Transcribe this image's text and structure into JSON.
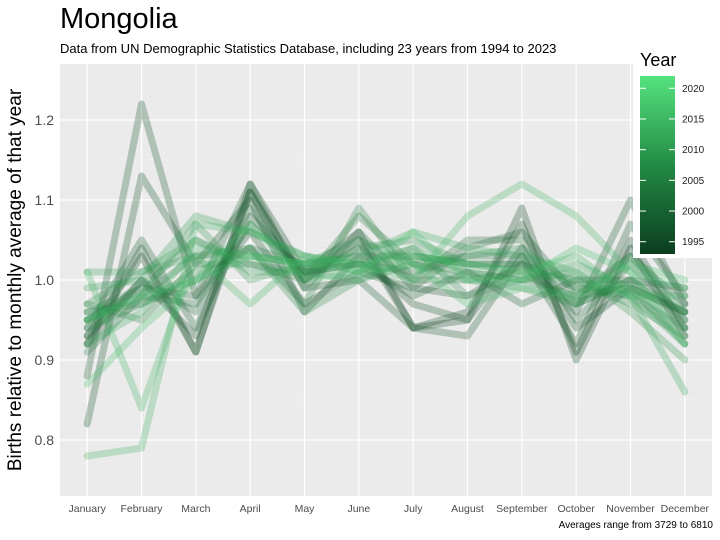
{
  "header": {
    "title": "Mongolia",
    "subtitle": "Data from UN Demographic Statistics Database, including 23 years from 1994 to 2023"
  },
  "footer": {
    "caption": "Averages range from 3729 to 6810"
  },
  "colors": {
    "panel_bg": "#ebebeb",
    "grid": "#ffffff",
    "low": "#0b3d1e",
    "high": "#55e27e"
  },
  "chart_data": {
    "type": "line",
    "title": "Mongolia",
    "subtitle": "Data from UN Demographic Statistics Database, including 23 years from 1994 to 2023",
    "xlabel": "",
    "ylabel": "Births relative to monthly average of that year",
    "categories": [
      "January",
      "February",
      "March",
      "April",
      "May",
      "June",
      "July",
      "August",
      "September",
      "October",
      "November",
      "December"
    ],
    "ylim": [
      0.73,
      1.27
    ],
    "yticks": [
      0.8,
      0.9,
      1.0,
      1.1,
      1.2
    ],
    "grid": true,
    "legend": {
      "title": "Year",
      "position": "right",
      "range": [
        1993,
        2022
      ],
      "ticks": [
        1995,
        2000,
        2005,
        2010,
        2015,
        2020
      ]
    },
    "caption": "Averages range from 3729 to 6810",
    "series": [
      {
        "year": 1994,
        "values": [
          0.93,
          1.03,
          0.91,
          1.12,
          1.01,
          1.06,
          0.94,
          0.95,
          1.09,
          0.9,
          1.04,
          0.93
        ]
      },
      {
        "year": 1995,
        "values": [
          0.92,
          1.0,
          0.93,
          1.11,
          1.0,
          1.05,
          0.94,
          0.96,
          1.07,
          0.91,
          1.05,
          0.94
        ]
      },
      {
        "year": 1996,
        "values": [
          0.82,
          1.13,
          1.02,
          1.1,
          0.96,
          1.03,
          0.97,
          0.95,
          1.04,
          0.94,
          0.99,
          0.96
        ]
      },
      {
        "year": 1997,
        "values": [
          0.88,
          1.22,
          0.98,
          1.06,
          0.97,
          1.01,
          0.99,
          0.98,
          1.02,
          0.96,
          1.1,
          0.97
        ]
      },
      {
        "year": 1998,
        "values": [
          0.92,
          1.04,
          0.91,
          1.11,
          0.99,
          1.0,
          0.94,
          0.93,
          1.03,
          0.92,
          1.07,
          0.98
        ]
      },
      {
        "year": 1999,
        "values": [
          0.94,
          1.05,
          0.94,
          1.08,
          1.01,
          1.02,
          0.98,
          1.01,
          0.97,
          1.0,
          1.0,
          0.99
        ]
      },
      {
        "year": 2000,
        "values": [
          0.95,
          0.99,
          0.98,
          1.12,
          0.99,
          1.06,
          0.99,
          1.04,
          1.06,
          0.98,
          1.03,
          0.97
        ]
      },
      {
        "year": 2001,
        "values": [
          0.93,
          1.0,
          0.96,
          1.09,
          1.0,
          1.04,
          1.0,
          1.05,
          1.05,
          0.95,
          1.02,
          0.95
        ]
      },
      {
        "year": 2002,
        "values": [
          0.91,
          0.98,
          0.97,
          1.07,
          1.01,
          1.02,
          1.01,
          1.03,
          1.03,
          0.97,
          1.0,
          0.96
        ]
      },
      {
        "year": 2003,
        "values": [
          0.96,
          0.97,
          1.0,
          1.04,
          1.02,
          1.03,
          1.03,
          1.02,
          1.02,
          0.99,
          0.98,
          0.94
        ]
      },
      {
        "year": 2004,
        "values": [
          0.97,
          0.95,
          1.02,
          1.02,
          1.0,
          1.08,
          1.02,
          1.01,
          1.0,
          0.98,
          0.99,
          0.96
        ]
      },
      {
        "year": 2005,
        "values": [
          0.95,
          0.98,
          1.03,
          1.04,
          0.97,
          1.09,
          1.0,
          1.0,
          1.01,
          0.97,
          1.0,
          0.95
        ]
      },
      {
        "year": 2006,
        "values": [
          0.96,
          0.99,
          1.05,
          1.02,
          1.01,
          1.04,
          1.05,
          1.02,
          1.02,
          1.0,
          0.97,
          0.93
        ]
      },
      {
        "year": 2007,
        "values": [
          0.94,
          0.97,
          1.01,
          1.04,
          0.96,
          1.0,
          1.02,
          1.03,
          1.04,
          0.99,
          0.99,
          0.92
        ]
      },
      {
        "year": 2008,
        "values": [
          0.97,
          1.01,
          1.03,
          1.03,
          1.02,
          1.02,
          1.04,
          0.98,
          1.0,
          1.01,
          0.96,
          0.9
        ]
      },
      {
        "year": 2009,
        "values": [
          0.95,
          0.98,
          1.07,
          1.0,
          1.02,
          1.05,
          1.02,
          1.0,
          0.99,
          0.97,
          1.03,
          0.96
        ]
      },
      {
        "year": 2010,
        "values": [
          0.99,
          1.0,
          1.08,
          1.06,
          1.03,
          1.01,
          1.04,
          1.01,
          1.0,
          1.02,
          0.99,
          0.94
        ]
      },
      {
        "year": 2011,
        "values": [
          1.01,
          1.01,
          1.05,
          1.01,
          1.01,
          1.0,
          1.03,
          1.02,
          1.01,
          1.0,
          0.98,
          0.92
        ]
      },
      {
        "year": 2012,
        "values": [
          0.92,
          0.96,
          1.04,
          1.03,
          1.02,
          1.03,
          1.06,
          1.04,
          1.03,
          1.01,
          0.98,
          0.86
        ]
      },
      {
        "year": 2013,
        "values": [
          0.78,
          0.79,
          1.07,
          1.06,
          1.03,
          1.02,
          1.03,
          1.02,
          1.01,
          1.03,
          0.98,
          0.98
        ]
      },
      {
        "year": 2014,
        "values": [
          1.01,
          0.84,
          1.03,
          0.97,
          1.03,
          1.02,
          1.0,
          1.08,
          1.12,
          1.08,
          1.01,
          0.92
        ]
      },
      {
        "year": 2015,
        "values": [
          0.87,
          0.94,
          1.0,
          1.07,
          1.0,
          1.01,
          1.02,
          0.97,
          0.99,
          0.98,
          1.02,
          1.0
        ]
      },
      {
        "year": 2016,
        "values": [
          0.95,
          0.98,
          1.0,
          1.03,
          1.02,
          1.01,
          1.06,
          1.0,
          1.0,
          1.04,
          1.01,
          0.99
        ]
      }
    ]
  }
}
